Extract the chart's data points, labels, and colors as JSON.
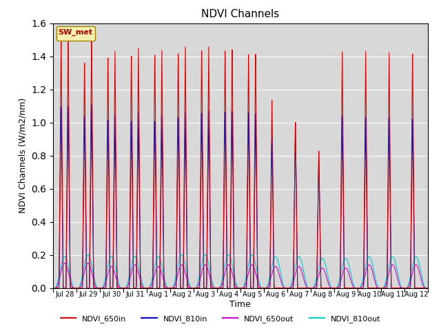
{
  "title": "NDVI Channels",
  "xlabel": "Time",
  "ylabel": "NDVI Channels (W/m2/nm)",
  "ylim": [
    0,
    1.6
  ],
  "background_color": "#d8d8d8",
  "legend_label": "SW_met",
  "legend_bg": "#f5f0b0",
  "legend_edge": "#a08000",
  "series": [
    "NDVI_650in",
    "NDVI_810in",
    "NDVI_650out",
    "NDVI_810out"
  ],
  "colors": [
    "#dd0000",
    "#0000cc",
    "#cc00cc",
    "#00cccc"
  ],
  "num_days": 16,
  "xtick_labels": [
    "Jul 28",
    "Jul 29",
    "Jul 30",
    "Jul 31",
    "Aug 1",
    "Aug 2",
    "Aug 3",
    "Aug 4",
    "Aug 5",
    "Aug 6",
    "Aug 7",
    "Aug 8",
    "Aug 9",
    "Aug 10",
    "Aug 11",
    "Aug 12"
  ],
  "peaks_650in_a": [
    1.53,
    1.4,
    1.44,
    1.46,
    1.47,
    1.47,
    1.48,
    1.47,
    1.44,
    1.15,
    1.01,
    0.83,
    1.43,
    1.44,
    1.44,
    1.44
  ],
  "peaks_650in_b": [
    1.53,
    1.53,
    1.44,
    1.45,
    1.44,
    1.47,
    1.48,
    1.47,
    1.45,
    0.0,
    0.0,
    0.0,
    0.0,
    0.0,
    0.0,
    0.0
  ],
  "peaks_810in_a": [
    1.12,
    1.07,
    1.05,
    1.05,
    1.05,
    1.07,
    1.09,
    1.09,
    1.08,
    0.92,
    1.01,
    0.83,
    1.04,
    1.04,
    1.04,
    1.04
  ],
  "peaks_810in_b": [
    1.12,
    1.12,
    1.05,
    1.06,
    1.05,
    1.07,
    1.09,
    1.09,
    1.08,
    0.0,
    0.0,
    0.0,
    0.0,
    0.0,
    0.0,
    0.0
  ],
  "peaks_650out": [
    0.15,
    0.15,
    0.13,
    0.14,
    0.13,
    0.14,
    0.14,
    0.14,
    0.14,
    0.13,
    0.13,
    0.12,
    0.12,
    0.14,
    0.14,
    0.14
  ],
  "peaks_810out": [
    0.19,
    0.2,
    0.19,
    0.19,
    0.19,
    0.2,
    0.2,
    0.2,
    0.2,
    0.19,
    0.19,
    0.18,
    0.18,
    0.19,
    0.19,
    0.19
  ]
}
